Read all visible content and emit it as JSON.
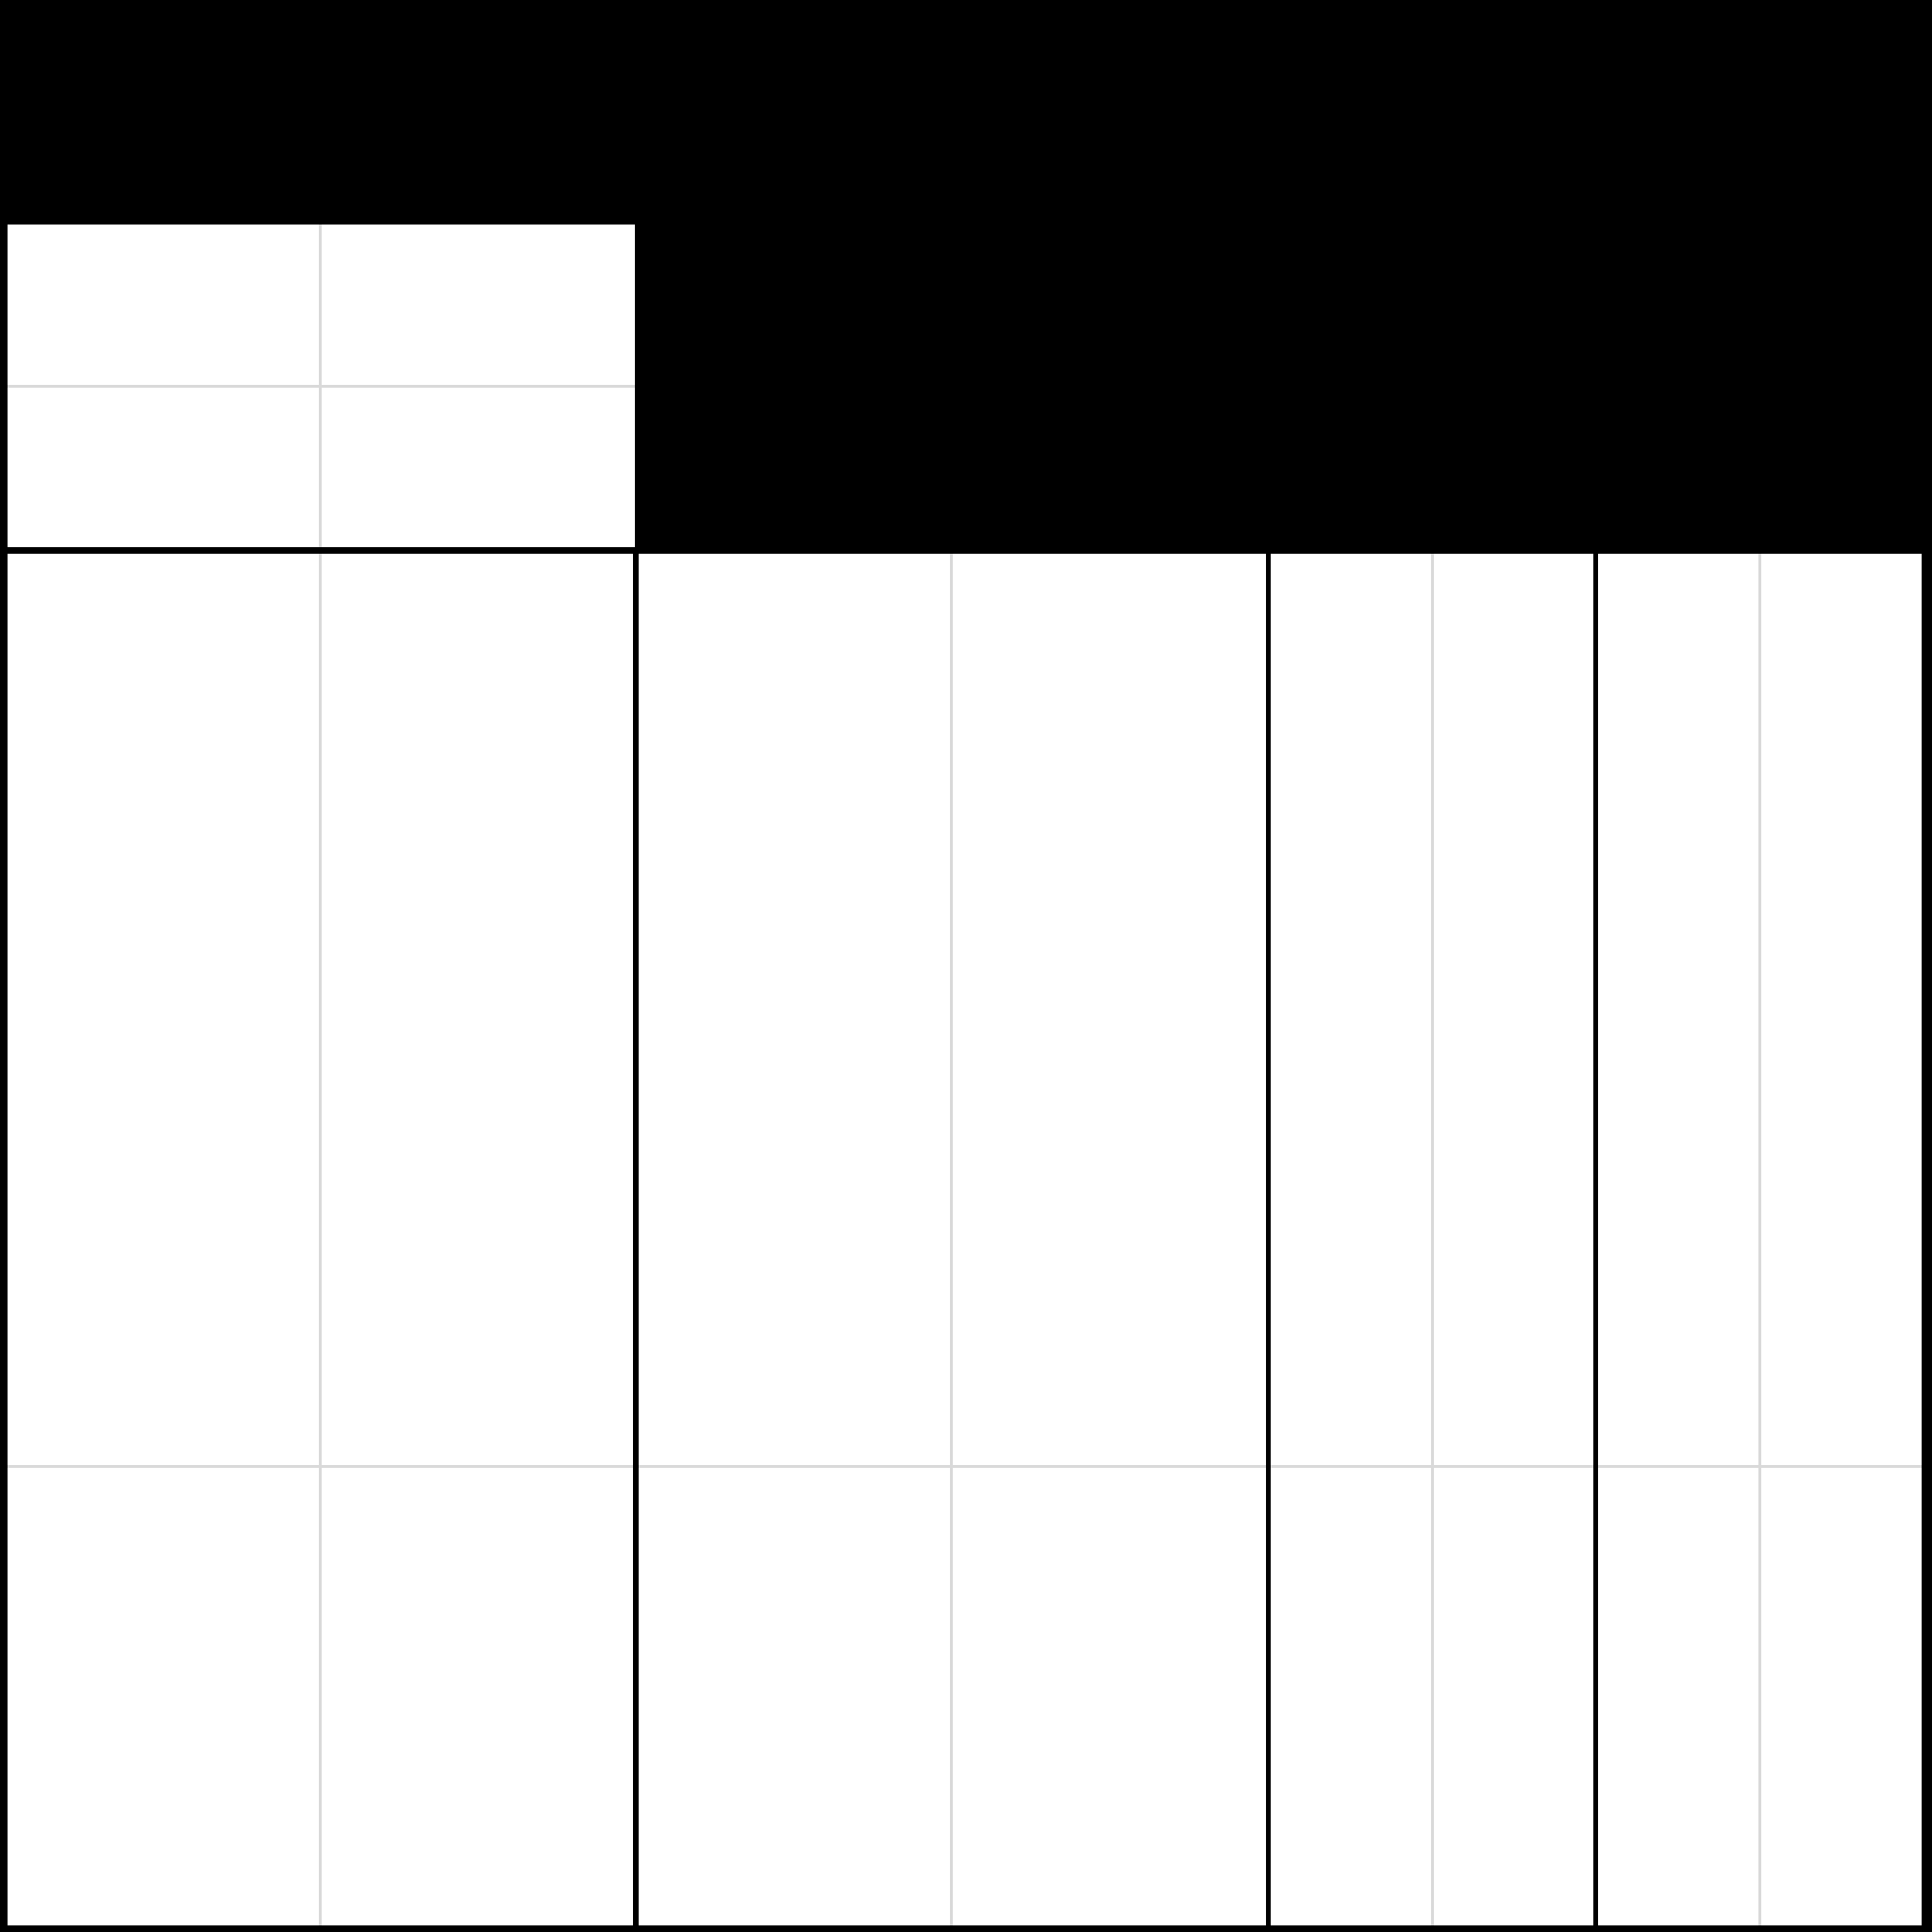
{
  "canvas": {
    "background": "#000000",
    "panel_color": "#ffffff",
    "gridline_color": "#d9d9d9",
    "border_color": "#000000"
  },
  "panels": [
    {
      "id": "panel-top-left",
      "vertical_guides": 1,
      "horizontal_guides": 1
    },
    {
      "id": "panel-column-1",
      "vertical_guides": 1,
      "horizontal_guides": 1
    },
    {
      "id": "panel-column-2",
      "vertical_guides": 1,
      "horizontal_guides": 1
    },
    {
      "id": "panel-column-3",
      "vertical_guides": 1,
      "horizontal_guides": 1
    },
    {
      "id": "panel-column-4",
      "vertical_guides": 1,
      "horizontal_guides": 1
    }
  ]
}
